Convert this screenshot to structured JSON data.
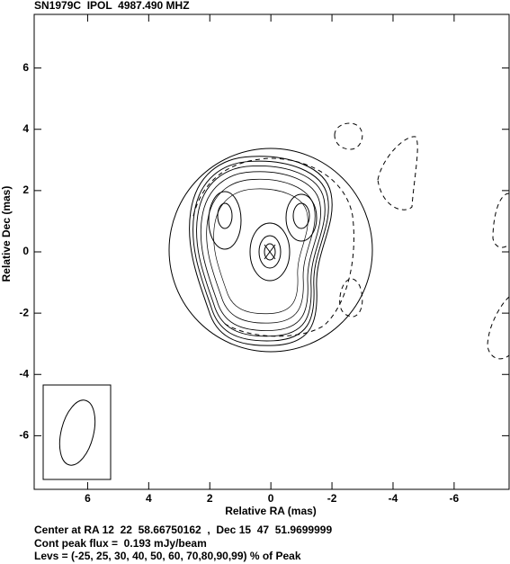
{
  "chart_data": {
    "type": "contour",
    "title": "SN1979C  IPOL  4987.490 MHZ",
    "x_label": "Relative RA (mas)",
    "y_label": "Relative Dec (mas)",
    "xlim": [
      7.75,
      -7.8
    ],
    "ylim": [
      -7.75,
      7.75
    ],
    "xticks": [
      6,
      4,
      2,
      0,
      -2,
      -4,
      -6
    ],
    "yticks": [
      6,
      4,
      2,
      0,
      -2,
      -4,
      -6
    ],
    "footer": [
      "Center at RA 12  22  58.66750162  ,  Dec 15  47  51.9699999",
      "Cont peak flux =  0.193 mJy/beam",
      "Levs = (-25, 25, 30, 40, 50, 60, 70,80,90,99) % of Peak"
    ]
  }
}
